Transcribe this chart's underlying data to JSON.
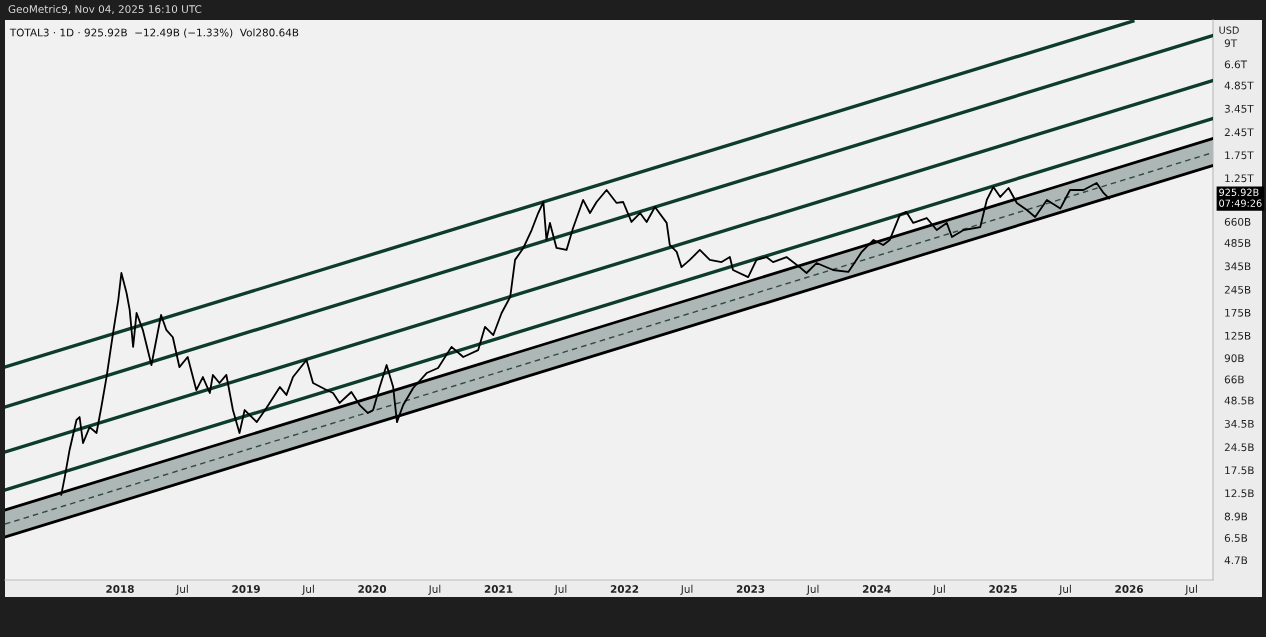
{
  "chart_data": {
    "type": "line",
    "title": "GeoMetric9, Nov 04, 2025 16:10 UTC",
    "subtitle": "TOTAL3 · 1D · 925.92B  −12.49B (−1.33%)  Vol280.64B",
    "ylabel": "USD",
    "log": true,
    "xlim": [
      "2017-02-02",
      "2026-09-01"
    ],
    "xticks": [
      {
        "value": "2018-01-01",
        "label": "2018"
      },
      {
        "value": "2018-07-01",
        "label": "Jul"
      },
      {
        "value": "2019-01-01",
        "label": "2019"
      },
      {
        "value": "2019-07-01",
        "label": "Jul"
      },
      {
        "value": "2020-01-01",
        "label": "2020"
      },
      {
        "value": "2020-07-01",
        "label": "Jul"
      },
      {
        "value": "2021-01-01",
        "label": "2021"
      },
      {
        "value": "2021-07-01",
        "label": "Jul"
      },
      {
        "value": "2022-01-01",
        "label": "2022"
      },
      {
        "value": "2022-07-01",
        "label": "Jul"
      },
      {
        "value": "2023-01-01",
        "label": "2023"
      },
      {
        "value": "2023-07-01",
        "label": "Jul"
      },
      {
        "value": "2024-01-01",
        "label": "2024"
      },
      {
        "value": "2024-07-01",
        "label": "Jul"
      },
      {
        "value": "2025-01-01",
        "label": "2025"
      },
      {
        "value": "2025-07-01",
        "label": "Jul"
      },
      {
        "value": "2026-01-01",
        "label": "2026"
      },
      {
        "value": "2026-07-01",
        "label": "Jul"
      }
    ],
    "ylim": [
      3510000000.0,
      12600000000000.0
    ],
    "yticks": [
      {
        "value": 4700000000.0,
        "label": "4.7B"
      },
      {
        "value": 6500000000.0,
        "label": "6.5B"
      },
      {
        "value": 8900000000.0,
        "label": "8.9B"
      },
      {
        "value": 12500000000.0,
        "label": "12.5B"
      },
      {
        "value": 17500000000.0,
        "label": "17.5B"
      },
      {
        "value": 24500000000.0,
        "label": "24.5B"
      },
      {
        "value": 34500000000.0,
        "label": "34.5B"
      },
      {
        "value": 48500000000.0,
        "label": "48.5B"
      },
      {
        "value": 66000000000.0,
        "label": "66B"
      },
      {
        "value": 90000000000.0,
        "label": "90B"
      },
      {
        "value": 125000000000.0,
        "label": "125B"
      },
      {
        "value": 175000000000.0,
        "label": "175B"
      },
      {
        "value": 245000000000.0,
        "label": "245B"
      },
      {
        "value": 345000000000.0,
        "label": "345B"
      },
      {
        "value": 485000000000.0,
        "label": "485B"
      },
      {
        "value": 660000000000.0,
        "label": "660B"
      },
      {
        "value": 1250000000000.0,
        "label": "1.25T"
      },
      {
        "value": 1750000000000.0,
        "label": "1.75T"
      },
      {
        "value": 2450000000000.0,
        "label": "2.45T"
      },
      {
        "value": 3450000000000.0,
        "label": "3.45T"
      },
      {
        "value": 4850000000000.0,
        "label": "4.85T"
      },
      {
        "value": 6600000000000.0,
        "label": "6.6T"
      },
      {
        "value": 9000000000000.0,
        "label": "9T"
      }
    ],
    "annotations": [
      "925.92B\n07:49:26"
    ],
    "series": [
      {
        "type": "line",
        "color": "#0d3b2e",
        "x": [
          "2017-02-02",
          "2026-01-12"
        ],
        "values": [
          79000000000.0,
          12400000000000.0
        ]
      },
      {
        "type": "line",
        "color": "#0d3b2e",
        "x": [
          "2017-02-02",
          "2026-09-01"
        ],
        "values": [
          44000000000.0,
          10050000000000.0
        ]
      },
      {
        "type": "line",
        "color": "#0d3b2e",
        "x": [
          "2017-02-02",
          "2026-09-01"
        ],
        "values": [
          22800000000.0,
          5208000000000.0
        ]
      },
      {
        "type": "line",
        "color": "#0d3b2e",
        "x": [
          "2017-02-02",
          "2026-09-01"
        ],
        "values": [
          13070000000.0,
          2985000000000.0
        ]
      },
      {
        "type": "line",
        "color": "#2f4a44",
        "line_style": "dashed",
        "x": [
          "2017-02-02",
          "2026-09-01"
        ],
        "values": [
          7950000000.0,
          1816000000000.0
        ],
        "lower": [
          6580000000.0,
          1503000000000.0
        ],
        "upper": [
          9760000000.0,
          2229000000000.0
        ]
      },
      {
        "type": "line",
        "color": "#000000",
        "x": [
          "2017-02-02",
          "2026-09-01"
        ],
        "values": [
          9760000000.0,
          2229000000000.0
        ]
      },
      {
        "type": "line",
        "color": "#000000",
        "x": [
          "2017-02-02",
          "2026-09-01"
        ],
        "values": [
          6580000000.0,
          1503000000000.0
        ]
      },
      {
        "type": "line",
        "color": "#000000",
        "x": [
          "2017-07-15",
          "2017-07-25",
          "2017-08-08",
          "2017-08-28",
          "2017-09-06",
          "2017-09-16",
          "2017-10-05",
          "2017-10-25",
          "2017-11-08",
          "2017-11-23",
          "2017-12-12",
          "2017-12-27",
          "2018-01-05",
          "2018-01-20",
          "2018-01-29",
          "2018-02-08",
          "2018-02-18",
          "2018-03-08",
          "2018-04-02",
          "2018-04-30",
          "2018-05-15",
          "2018-06-03",
          "2018-06-22",
          "2018-07-16",
          "2018-08-10",
          "2018-08-29",
          "2018-09-18",
          "2018-09-27",
          "2018-10-16",
          "2018-11-05",
          "2018-11-24",
          "2018-12-13",
          "2018-12-28",
          "2019-02-01",
          "2019-03-01",
          "2019-04-09",
          "2019-04-28",
          "2019-05-17",
          "2019-06-25",
          "2019-07-14",
          "2019-08-22",
          "2019-09-10",
          "2019-09-29",
          "2019-11-02",
          "2019-11-26",
          "2019-12-20",
          "2020-01-04",
          "2020-01-23",
          "2020-02-12",
          "2020-03-02",
          "2020-03-13",
          "2020-03-31",
          "2020-04-29",
          "2020-06-07",
          "2020-07-10",
          "2020-08-18",
          "2020-09-21",
          "2020-11-03",
          "2020-11-23",
          "2020-12-17",
          "2021-01-10",
          "2021-02-04",
          "2021-02-18",
          "2021-03-14",
          "2021-04-07",
          "2021-04-26",
          "2021-05-11",
          "2021-05-20",
          "2021-05-30",
          "2021-06-18",
          "2021-07-17",
          "2021-08-05",
          "2021-09-03",
          "2021-09-23",
          "2021-10-12",
          "2021-11-10",
          "2021-12-09",
          "2021-12-28",
          "2022-01-21",
          "2022-02-15",
          "2022-03-06",
          "2022-03-30",
          "2022-05-03",
          "2022-05-12",
          "2022-06-01",
          "2022-06-15",
          "2022-07-09",
          "2022-08-07",
          "2022-09-05",
          "2022-10-09",
          "2022-11-02",
          "2022-11-11",
          "2022-12-25",
          "2023-01-18",
          "2023-02-16",
          "2023-03-07",
          "2023-04-15",
          "2023-05-23",
          "2023-06-12",
          "2023-07-11",
          "2023-08-28",
          "2023-10-11",
          "2023-11-19",
          "2023-12-23",
          "2024-01-20",
          "2024-02-08",
          "2024-03-08",
          "2024-03-27",
          "2024-04-16",
          "2024-05-25",
          "2024-06-23",
          "2024-07-22",
          "2024-08-06",
          "2024-09-09",
          "2024-10-27",
          "2024-11-15",
          "2024-12-04",
          "2024-12-24",
          "2025-01-17",
          "2025-02-10",
          "2025-03-11",
          "2025-04-04",
          "2025-05-08",
          "2025-06-16",
          "2025-07-14",
          "2025-08-22",
          "2025-09-29",
          "2025-10-19",
          "2025-11-04"
        ],
        "values": [
          12200000000.0,
          15800000000.0,
          23500000000.0,
          36400000000.0,
          38000000000.0,
          26000000000.0,
          32800000000.0,
          30100000000.0,
          44000000000.0,
          68200000000.0,
          130000000000.0,
          210000000000.0,
          312000000000.0,
          233000000000.0,
          182000000000.0,
          106000000000.0,
          174000000000.0,
          136000000000.0,
          81300000000.0,
          169000000000.0,
          136000000000.0,
          122000000000.0,
          78900000000.0,
          91400000000.0,
          56400000000.0,
          68200000000.0,
          54000000000.0,
          70300000000.0,
          62500000000.0,
          70300000000.0,
          42100000000.0,
          30100000000.0,
          42100000000.0,
          35300000000.0,
          43400000000.0,
          58900000000.0,
          52500000000.0,
          68200000000.0,
          87500000000.0,
          62500000000.0,
          56400000000.0,
          54000000000.0,
          46700000000.0,
          54800000000.0,
          45300000000.0,
          40300000000.0,
          42100000000.0,
          58900000000.0,
          81300000000.0,
          58900000000.0,
          35300000000.0,
          45300000000.0,
          58100000000.0,
          72300000000.0,
          77800000000.0,
          106000000000.0,
          91400000000.0,
          101000000000.0,
          142000000000.0,
          126000000000.0,
          174000000000.0,
          220000000000.0,
          378000000000.0,
          450000000000.0,
          585000000000.0,
          750000000000.0,
          881000000000.0,
          506000000000.0,
          649000000000.0,
          450000000000.0,
          437000000000.0,
          603000000000.0,
          908000000000.0,
          750000000000.0,
          881000000000.0,
          1050000000000.0,
          869000000000.0,
          881000000000.0,
          658000000000.0,
          750000000000.0,
          658000000000.0,
          819000000000.0,
          649000000000.0,
          470000000000.0,
          425000000000.0,
          340000000000.0,
          378000000000.0,
          437000000000.0,
          378000000000.0,
          366000000000.0,
          394000000000.0,
          326000000000.0,
          294000000000.0,
          378000000000.0,
          394000000000.0,
          366000000000.0,
          394000000000.0,
          340000000000.0,
          312000000000.0,
          361000000000.0,
          326000000000.0,
          317000000000.0,
          425000000000.0,
          506000000000.0,
          470000000000.0,
          506000000000.0,
          728000000000.0,
          762000000000.0,
          649000000000.0,
          697000000000.0,
          585000000000.0,
          649000000000.0,
          528000000000.0,
          585000000000.0,
          611000000000.0,
          908000000000.0,
          1097000000000.0,
          948000000000.0,
          1081000000000.0,
          869000000000.0,
          783000000000.0,
          708000000000.0,
          908000000000.0,
          802000000000.0,
          1050000000000.0,
          1050000000000.0,
          1164000000000.0,
          1005000000000.0,
          925920000000.0
        ]
      }
    ]
  }
}
